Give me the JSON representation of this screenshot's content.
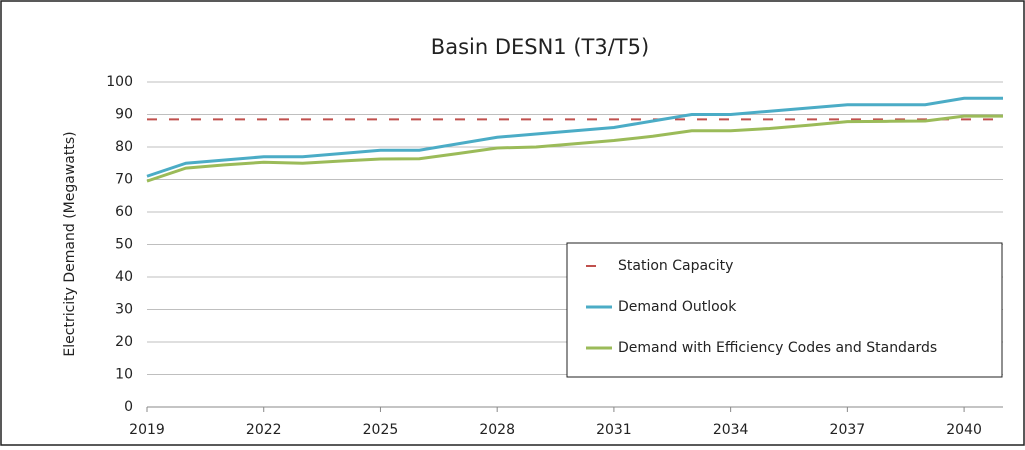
{
  "chart_data": {
    "type": "line",
    "title": "Basin DESN1 (T3/T5)",
    "y_label": "Electricity Demand (Megawatts)",
    "x": [
      2019,
      2020,
      2021,
      2022,
      2023,
      2024,
      2025,
      2026,
      2027,
      2028,
      2029,
      2030,
      2031,
      2032,
      2033,
      2034,
      2035,
      2036,
      2037,
      2038,
      2039,
      2040,
      2041
    ],
    "series": [
      {
        "name": "Station Capacity",
        "color": "#c0504d",
        "dashed": true,
        "values": [
          88.5,
          88.5,
          88.5,
          88.5,
          88.5,
          88.5,
          88.5,
          88.5,
          88.5,
          88.5,
          88.5,
          88.5,
          88.5,
          88.5,
          88.5,
          88.5,
          88.5,
          88.5,
          88.5,
          88.5,
          88.5,
          88.5,
          88.5
        ]
      },
      {
        "name": "Demand Outlook",
        "color": "#4bacc6",
        "dashed": false,
        "values": [
          71,
          75,
          76,
          77,
          77,
          78,
          79,
          79,
          81,
          83,
          84,
          85,
          86,
          88,
          90,
          90,
          91,
          92,
          93,
          93,
          93,
          95,
          95
        ]
      },
      {
        "name": "Demand with Efficiency Codes and Standards",
        "color": "#9bbb59",
        "dashed": false,
        "values": [
          69.5,
          73.5,
          74.5,
          75.3,
          75,
          75.7,
          76.3,
          76.4,
          78,
          79.7,
          80,
          81,
          82,
          83.3,
          85,
          85,
          85.7,
          86.7,
          87.8,
          87.9,
          88,
          89.5,
          89.5
        ]
      }
    ],
    "xlim": [
      2019,
      2041
    ],
    "xticks": [
      2019,
      2022,
      2025,
      2028,
      2031,
      2034,
      2037,
      2040
    ],
    "ylim": [
      0,
      100
    ],
    "yticks": [
      0,
      10,
      20,
      30,
      40,
      50,
      60,
      70,
      80,
      90,
      100
    ],
    "grid": true
  }
}
